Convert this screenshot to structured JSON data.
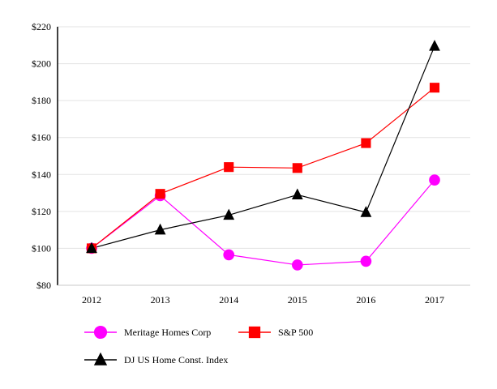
{
  "chart_data": {
    "type": "line",
    "title": "",
    "xlabel": "",
    "ylabel": "",
    "categories": [
      "2012",
      "2013",
      "2014",
      "2015",
      "2016",
      "2017"
    ],
    "ylim": [
      80,
      220
    ],
    "yticks": [
      80,
      100,
      120,
      140,
      160,
      180,
      200,
      220
    ],
    "ytick_labels": [
      "$80",
      "$100",
      "$120",
      "$140",
      "$160",
      "$180",
      "$200",
      "$220"
    ],
    "grid": "horizontal",
    "series": [
      {
        "name": "Meritage Homes Corp",
        "color": "#ff00ff",
        "marker": "circle",
        "values": [
          100,
          128.5,
          96.5,
          91,
          93,
          137
        ]
      },
      {
        "name": "S&P 500",
        "color": "#ff0000",
        "marker": "square",
        "values": [
          100,
          129.5,
          144,
          143.5,
          157,
          187
        ]
      },
      {
        "name": "DJ US Home Const. Index",
        "color": "#000000",
        "marker": "triangle",
        "values": [
          100,
          110,
          118,
          129,
          119.5,
          209.5
        ]
      }
    ],
    "legend": {
      "placement": "bottom",
      "entries": [
        "Meritage Homes Corp",
        "S&P 500",
        "DJ US Home Const. Index"
      ]
    }
  }
}
